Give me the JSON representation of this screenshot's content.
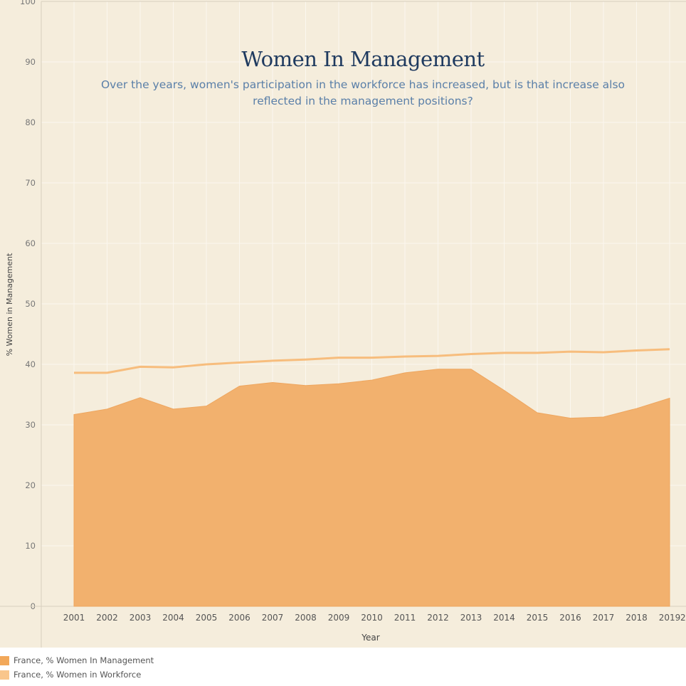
{
  "title": "Women In Management",
  "subtitle": "Over the years, women's participation in the workforce has increased, but is that increase also reflected in the management positions?",
  "colors": {
    "background": "#f5eddc",
    "area": "#f2b16e",
    "line": "#f7bd7d",
    "grid": "#fbf7ef",
    "axis_text": "#666666",
    "title": "#1f3a5f",
    "subtitle": "#5a7fa8"
  },
  "chart_data": {
    "type": "area",
    "x": [
      2001,
      2002,
      2003,
      2004,
      2005,
      2006,
      2007,
      2008,
      2009,
      2010,
      2011,
      2012,
      2013,
      2014,
      2015,
      2016,
      2017,
      2018,
      2019
    ],
    "series": [
      {
        "name": "France, % Women In Management",
        "mark": "area",
        "color": "#f2b16e",
        "values": [
          31.7,
          32.6,
          34.5,
          32.6,
          33.1,
          36.4,
          37.0,
          36.5,
          36.8,
          37.4,
          38.6,
          39.2,
          39.2,
          35.7,
          32.0,
          31.1,
          31.3,
          32.7,
          34.4
        ]
      },
      {
        "name": "France, % Women in Workforce",
        "mark": "line",
        "color": "#f7bd7d",
        "values": [
          38.6,
          38.6,
          39.6,
          39.5,
          40.0,
          40.3,
          40.6,
          40.8,
          41.1,
          41.1,
          41.3,
          41.4,
          41.7,
          41.9,
          41.9,
          42.1,
          42.0,
          42.3,
          42.5
        ]
      }
    ],
    "xlabel": "Year",
    "ylabel": "% Women in Management",
    "ylim": [
      0,
      100
    ],
    "yticks": [
      0,
      10,
      20,
      30,
      40,
      50,
      60,
      70,
      80,
      90,
      100
    ],
    "xticks": [
      "2001",
      "2002",
      "2003",
      "2004",
      "2005",
      "2006",
      "2007",
      "2008",
      "2009",
      "2010",
      "2011",
      "2012",
      "2013",
      "2014",
      "2015",
      "2016",
      "2017",
      "2018",
      "2019"
    ],
    "extra_tick_label": "2",
    "grid": true,
    "legend_position": "bottom-left"
  }
}
